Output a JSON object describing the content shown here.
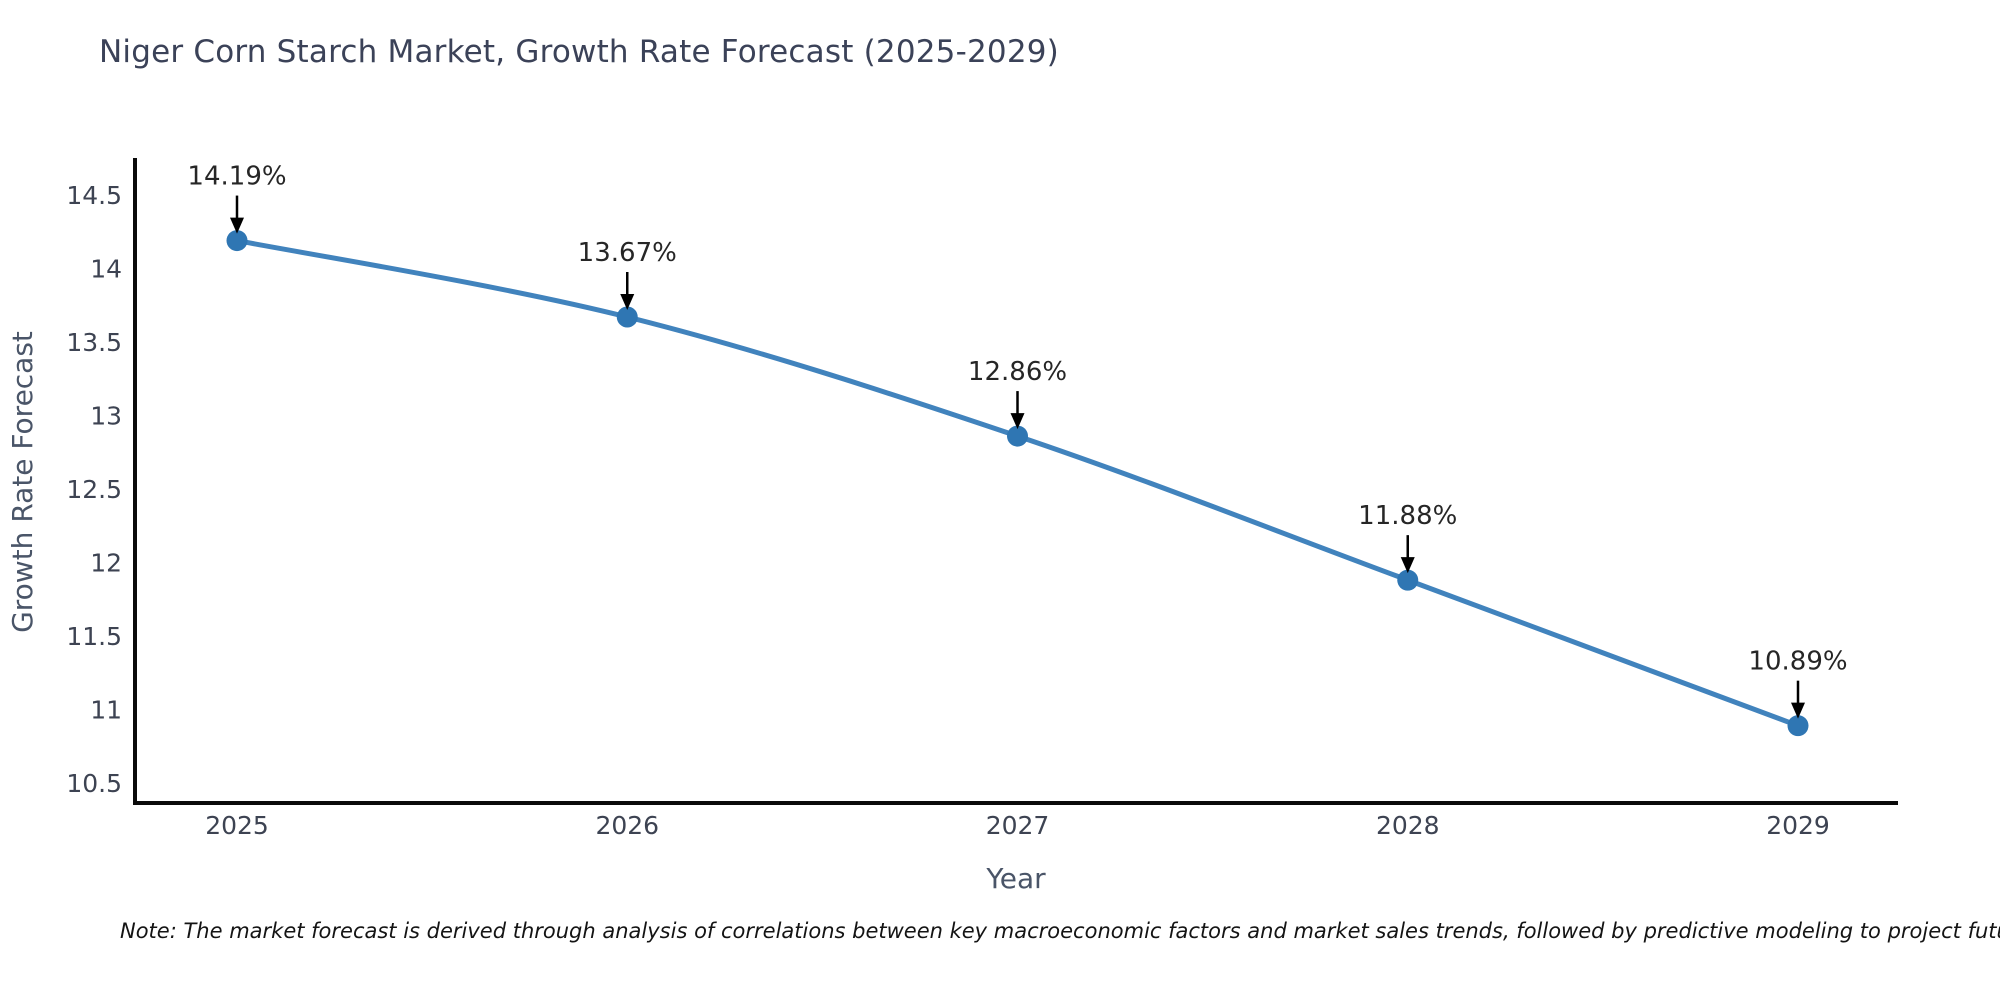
{
  "title": "Niger Corn Starch Market, Growth Rate Forecast (2025-2029)",
  "note": "Note: The market forecast is derived through analysis of correlations between key macroeconomic factors and market sales trends, followed by predictive modeling to project future sal",
  "chart_data": {
    "type": "line",
    "title": "Niger Corn Starch Market, Growth Rate Forecast (2025-2029)",
    "categories": [
      "2025",
      "2026",
      "2027",
      "2028",
      "2029"
    ],
    "values": [
      14.19,
      13.67,
      12.86,
      11.88,
      10.89
    ],
    "point_labels": [
      "14.19%",
      "13.67%",
      "12.86%",
      "11.88%",
      "10.89%"
    ],
    "series_name": "Growth Rate Forecast",
    "xlabel": "Year",
    "ylabel": "Growth Rate Forecast",
    "ylim": [
      10.36,
      14.74
    ],
    "ytick_labels": [
      "10.5",
      "11",
      "11.5",
      "12",
      "12.5",
      "13",
      "13.5",
      "14",
      "14.5"
    ],
    "grid": false,
    "legend": "none",
    "line_shape": "spline",
    "marker": "circle",
    "annotations": "arrow-down-to-point",
    "colors": {
      "line": "#4183bd",
      "marker": "#2f76b3",
      "annotation_text": "#262626",
      "arrow": "#000000",
      "axis_spine": "#0a0a0a",
      "tick_label": "#3d4352",
      "axis_title": "#4a5568",
      "title_text": "#3b4258"
    }
  }
}
